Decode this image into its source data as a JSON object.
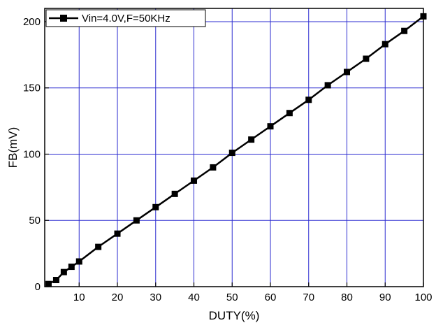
{
  "chart_data": {
    "type": "line",
    "xlabel": "DUTY(%)",
    "ylabel": "FB(mV)",
    "xlim": [
      1,
      100
    ],
    "ylim": [
      0,
      210
    ],
    "x_ticks": [
      10,
      20,
      30,
      40,
      50,
      60,
      70,
      80,
      90,
      100
    ],
    "y_ticks": [
      0,
      50,
      100,
      150,
      200
    ],
    "grid": true,
    "grid_color": "#2b2bd0",
    "legend_position": "top-left",
    "series": [
      {
        "name": "Vin=4.0V,F=50KHz",
        "color": "#000000",
        "marker": "square",
        "x": [
          2,
          4,
          6,
          8,
          10,
          15,
          20,
          25,
          30,
          35,
          40,
          45,
          50,
          55,
          60,
          65,
          70,
          75,
          80,
          85,
          90,
          95,
          100
        ],
        "y": [
          2,
          5,
          11,
          15,
          19,
          30,
          40,
          50,
          60,
          70,
          80,
          90,
          101,
          111,
          121,
          131,
          141,
          152,
          162,
          172,
          183,
          193,
          204
        ]
      }
    ]
  }
}
